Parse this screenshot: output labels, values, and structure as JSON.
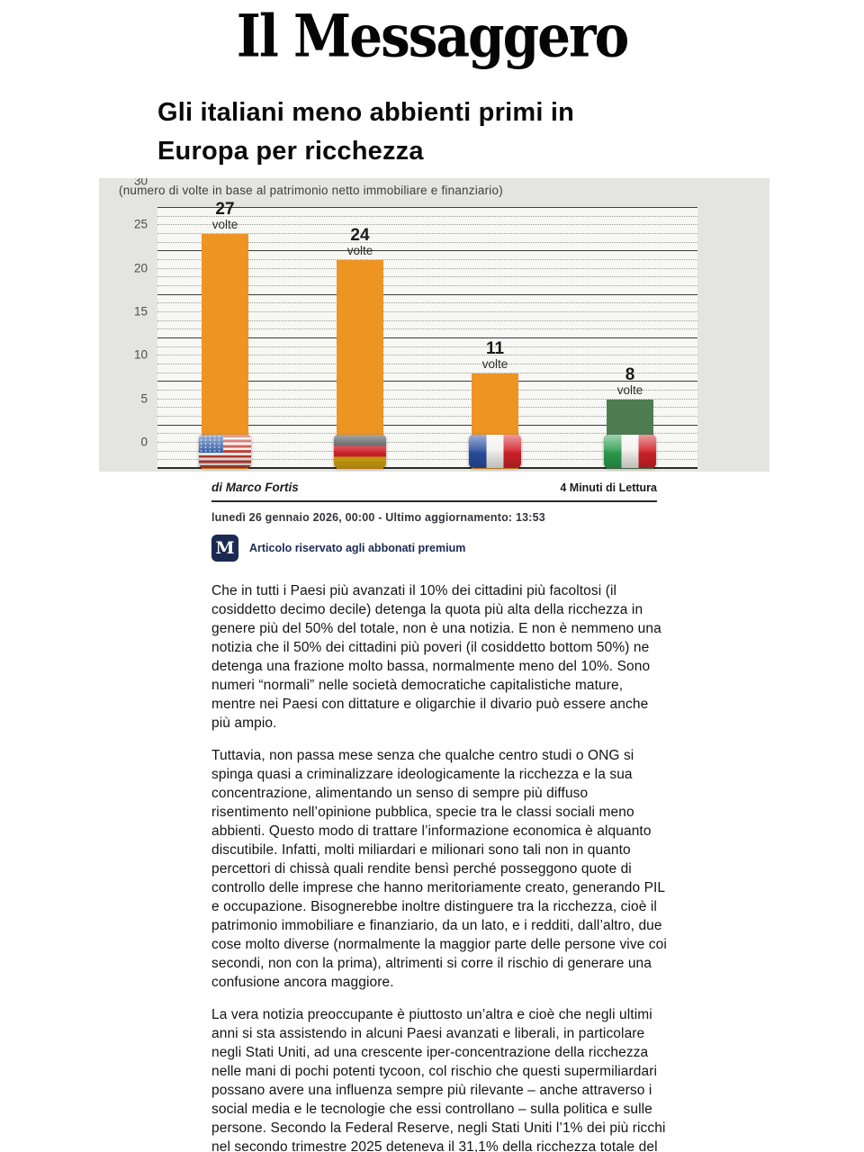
{
  "masthead": {
    "title": "Il Messaggero"
  },
  "article": {
    "headline": "Gli italiani meno abbienti primi in Europa per ricchezza",
    "byline": "di Marco Fortis",
    "reading_time": "4 Minuti di Lettura",
    "dateline": "lunedì 26 gennaio 2026, 00:00 - Ultimo aggiornamento: 13:53",
    "premium_badge_letter": "M",
    "premium_notice": "Articolo riservato agli abbonati premium",
    "paragraphs": [
      "Che in tutti i Paesi più avanzati il 10% dei cittadini più facoltosi (il cosiddetto decimo decile) detenga la quota più alta della ricchezza in genere più del 50% del totale, non è una notizia. E non è nemmeno una notizia che il 50% dei cittadini più poveri (il cosiddetto bottom 50%) ne detenga una frazione molto bassa, normalmente meno del 10%. Sono numeri “normali” nelle società democratiche capitalistiche mature, mentre nei Paesi con dittature e oligarchie il divario può essere anche più ampio.",
      "Tuttavia, non passa mese senza che qualche centro studi o ONG si spinga quasi a criminalizzare ideologicamente la ricchezza e la sua concentrazione, alimentando un senso di sempre più diffuso risentimento nell’opinione pubblica, specie tra le classi sociali meno abbienti. Questo modo di trattare l’informazione economica è alquanto discutibile. Infatti, molti miliardari e milionari sono tali non in quanto percettori di chissà quali rendite bensì perché posseggono quote di controllo delle imprese che hanno meritoriamente creato, generando PIL e occupazione. Bisognerebbe inoltre distinguere tra la ricchezza, cioè il patrimonio immobiliare e finanziario, da un lato, e i redditi, dall’altro, due cose molto diverse (normalmente la maggior parte delle persone vive coi secondi, non con la prima), altrimenti si corre il rischio di generare una confusione ancora maggiore.",
      "La vera notizia preoccupante è piuttosto un’altra e cioè che negli ultimi anni si sta assistendo in alcuni Paesi avanzati e liberali, in particolare negli Stati Uniti, ad una crescente iper-concentrazione della ricchezza nelle mani di pochi potenti tycoon, col rischio che questi supermiliardari possano avere una influenza sempre più rilevante – anche attraverso i social media e le tecnologie che essi controllano – sulla politica e sulle persone. Secondo la Federal Reserve, negli Stati Uniti l’1% dei più ricchi nel secondo trimestre 2025 deteneva il 31,1% della ricchezza totale del"
    ]
  },
  "chart_data": {
    "type": "bar",
    "title": "(numero di volte in base al patrimonio netto immobiliare e finanziario)",
    "categories": [
      "Stati Uniti",
      "Germania",
      "Francia",
      "Italia"
    ],
    "values": [
      27,
      24,
      11,
      8
    ],
    "value_suffix": "volte",
    "flags": [
      "usa",
      "germany",
      "france",
      "italy"
    ],
    "bar_colors": [
      "#ee9422",
      "#ee9422",
      "#ee9422",
      "#4e7d52"
    ],
    "ylim": [
      0,
      30
    ],
    "ytick_major": 5,
    "ytick_minor": 1,
    "grid": true,
    "legend": "none",
    "plot_background": "#f7f7f4",
    "panel_background": "#e4e4e0"
  },
  "theme": {
    "accent_orange": "#ee9422",
    "accent_green": "#4e7d52",
    "premium_navy": "#1b2a52"
  }
}
